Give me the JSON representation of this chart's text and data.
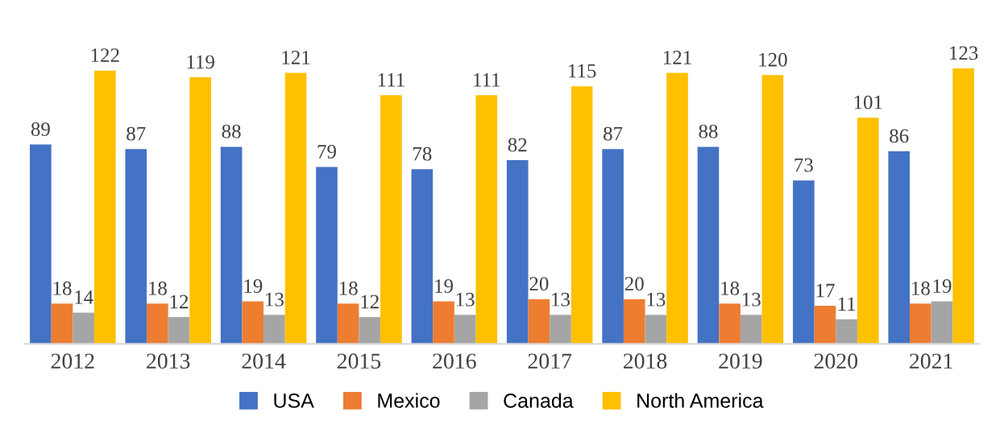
{
  "chart_data": {
    "type": "bar",
    "categories": [
      "2012",
      "2013",
      "2014",
      "2015",
      "2016",
      "2017",
      "2018",
      "2019",
      "2020",
      "2021"
    ],
    "series": [
      {
        "name": "USA",
        "color": "#4472c4",
        "values": [
          89,
          87,
          88,
          79,
          78,
          82,
          87,
          88,
          73,
          86
        ]
      },
      {
        "name": "Mexico",
        "color": "#ed7d31",
        "values": [
          18,
          18,
          19,
          18,
          19,
          20,
          20,
          18,
          17,
          18
        ]
      },
      {
        "name": "Canada",
        "color": "#a5a5a5",
        "values": [
          14,
          12,
          13,
          12,
          13,
          13,
          13,
          13,
          11,
          19
        ]
      },
      {
        "name": "North America",
        "color": "#ffc000",
        "values": [
          122,
          119,
          121,
          111,
          111,
          115,
          121,
          120,
          101,
          123
        ]
      }
    ],
    "data_labels": true,
    "legend": "bottom",
    "grid": false
  }
}
